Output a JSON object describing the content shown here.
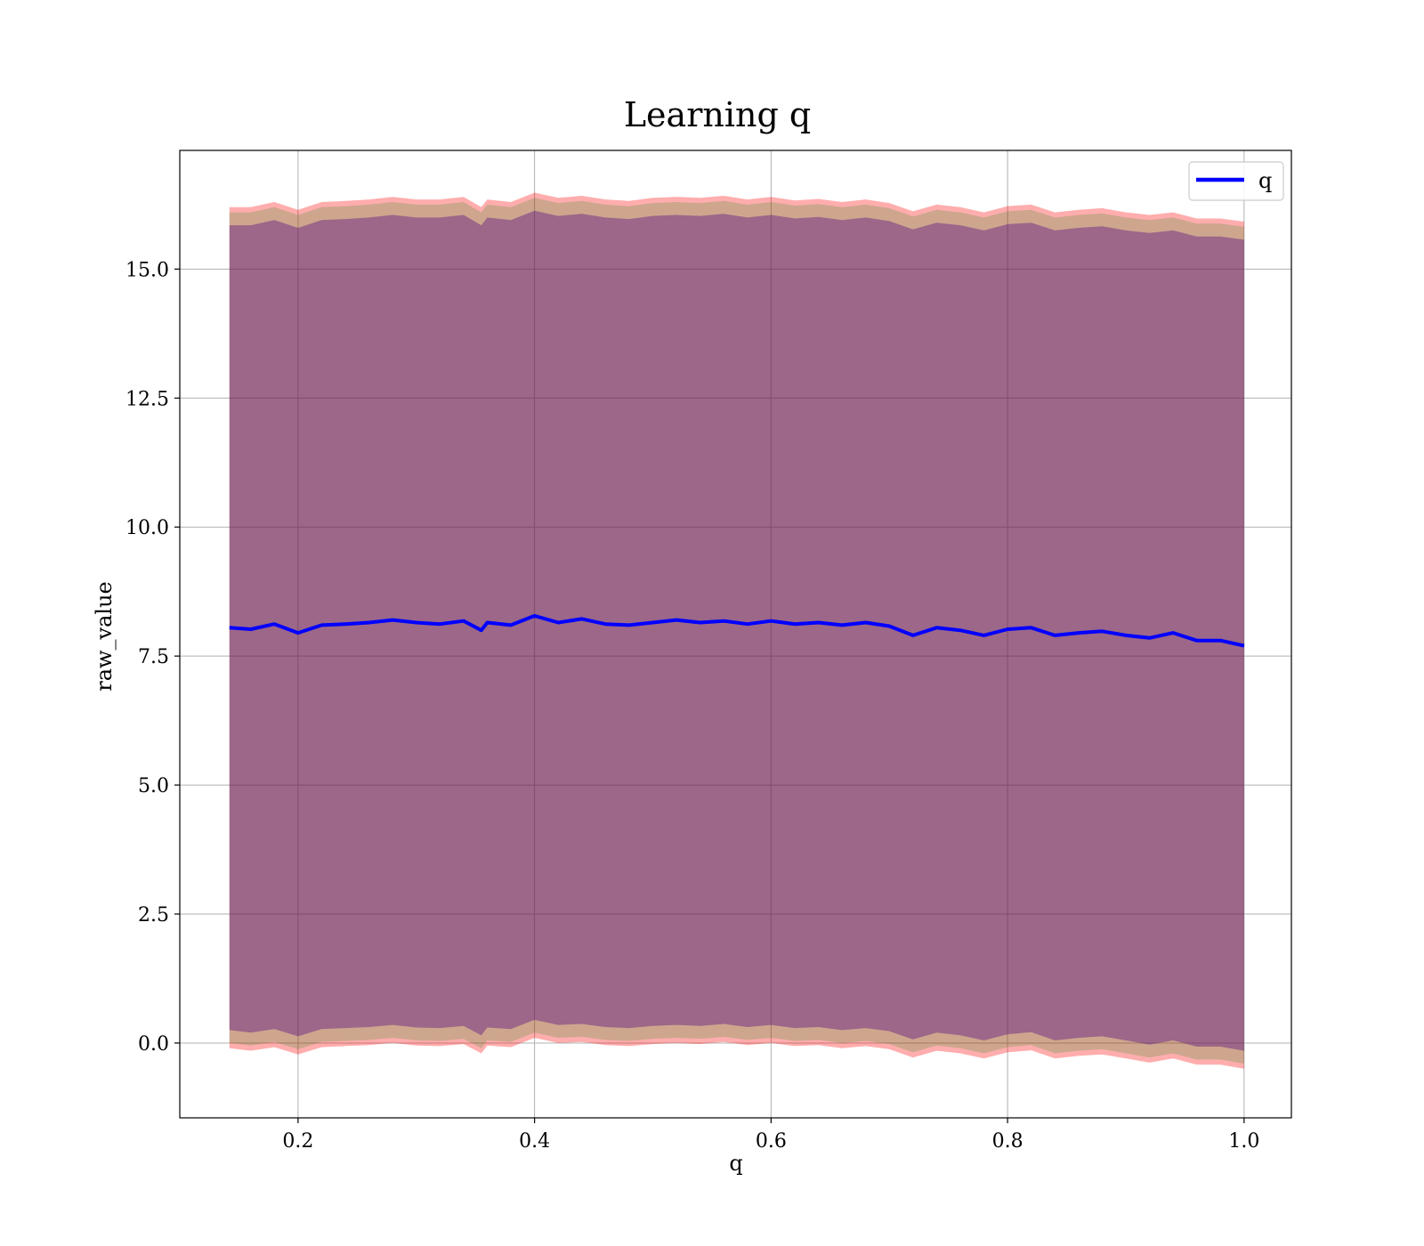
{
  "chart_data": {
    "type": "line",
    "title": "Learning q",
    "xlabel": "q",
    "ylabel": "raw_value",
    "xlim": [
      0.1,
      1.04
    ],
    "ylim": [
      -1.45,
      17.3
    ],
    "x_ticks": [
      0.2,
      0.4,
      0.6,
      0.8,
      1.0
    ],
    "x_tick_labels": [
      "0.2",
      "0.4",
      "0.6",
      "0.8",
      "1.0"
    ],
    "y_ticks": [
      0.0,
      2.5,
      5.0,
      7.5,
      10.0,
      12.5,
      15.0
    ],
    "y_tick_labels": [
      "0.0",
      "2.5",
      "5.0",
      "7.5",
      "10.0",
      "12.5",
      "15.0"
    ],
    "grid": true,
    "legend_position": "top-right",
    "series": [
      {
        "name": "q",
        "color": "#0000ff",
        "x": [
          0.142,
          0.16,
          0.18,
          0.2,
          0.22,
          0.24,
          0.26,
          0.28,
          0.3,
          0.32,
          0.34,
          0.355,
          0.36,
          0.38,
          0.4,
          0.42,
          0.44,
          0.46,
          0.48,
          0.5,
          0.52,
          0.54,
          0.56,
          0.58,
          0.6,
          0.62,
          0.64,
          0.66,
          0.68,
          0.7,
          0.72,
          0.74,
          0.76,
          0.78,
          0.8,
          0.82,
          0.84,
          0.86,
          0.88,
          0.9,
          0.92,
          0.94,
          0.96,
          0.98,
          1.0
        ],
        "y": [
          8.05,
          8.02,
          8.12,
          7.95,
          8.1,
          8.12,
          8.15,
          8.2,
          8.15,
          8.12,
          8.18,
          8.0,
          8.15,
          8.1,
          8.28,
          8.15,
          8.22,
          8.12,
          8.1,
          8.15,
          8.2,
          8.15,
          8.18,
          8.12,
          8.18,
          8.12,
          8.15,
          8.1,
          8.15,
          8.08,
          7.9,
          8.05,
          8.0,
          7.9,
          8.02,
          8.05,
          7.9,
          7.95,
          7.98,
          7.9,
          7.85,
          7.95,
          7.8,
          7.8,
          7.7
        ]
      }
    ],
    "bands": [
      {
        "color": "#ff0000",
        "opacity": 0.32,
        "x": [
          0.142,
          0.16,
          0.18,
          0.2,
          0.22,
          0.24,
          0.26,
          0.28,
          0.3,
          0.32,
          0.34,
          0.355,
          0.36,
          0.38,
          0.4,
          0.42,
          0.44,
          0.46,
          0.48,
          0.5,
          0.52,
          0.54,
          0.56,
          0.58,
          0.6,
          0.62,
          0.64,
          0.66,
          0.68,
          0.7,
          0.72,
          0.74,
          0.76,
          0.78,
          0.8,
          0.82,
          0.84,
          0.86,
          0.88,
          0.9,
          0.92,
          0.94,
          0.96,
          0.98,
          1.0
        ],
        "upper": [
          16.2,
          16.2,
          16.3,
          16.15,
          16.3,
          16.32,
          16.35,
          16.4,
          16.35,
          16.35,
          16.4,
          16.2,
          16.35,
          16.3,
          16.48,
          16.38,
          16.42,
          16.35,
          16.32,
          16.38,
          16.4,
          16.38,
          16.42,
          16.35,
          16.4,
          16.33,
          16.36,
          16.3,
          16.35,
          16.28,
          16.12,
          16.25,
          16.2,
          16.1,
          16.22,
          16.25,
          16.1,
          16.15,
          16.18,
          16.1,
          16.05,
          16.1,
          15.98,
          15.98,
          15.92
        ],
        "lower": [
          -0.1,
          -0.15,
          -0.08,
          -0.22,
          -0.08,
          -0.06,
          -0.04,
          0.0,
          -0.05,
          -0.06,
          -0.02,
          -0.2,
          -0.05,
          -0.08,
          0.1,
          0.0,
          0.02,
          -0.04,
          -0.06,
          -0.02,
          0.0,
          -0.02,
          0.02,
          -0.04,
          0.0,
          -0.06,
          -0.04,
          -0.1,
          -0.06,
          -0.12,
          -0.28,
          -0.15,
          -0.2,
          -0.3,
          -0.18,
          -0.14,
          -0.3,
          -0.25,
          -0.22,
          -0.3,
          -0.38,
          -0.3,
          -0.42,
          -0.42,
          -0.5
        ]
      },
      {
        "color": "#228b22",
        "opacity": 0.22,
        "x": [
          0.142,
          0.16,
          0.18,
          0.2,
          0.22,
          0.24,
          0.26,
          0.28,
          0.3,
          0.32,
          0.34,
          0.355,
          0.36,
          0.38,
          0.4,
          0.42,
          0.44,
          0.46,
          0.48,
          0.5,
          0.52,
          0.54,
          0.56,
          0.58,
          0.6,
          0.62,
          0.64,
          0.66,
          0.68,
          0.7,
          0.72,
          0.74,
          0.76,
          0.78,
          0.8,
          0.82,
          0.84,
          0.86,
          0.88,
          0.9,
          0.92,
          0.94,
          0.96,
          0.98,
          1.0
        ],
        "upper": [
          16.1,
          16.1,
          16.2,
          16.05,
          16.2,
          16.22,
          16.25,
          16.3,
          16.25,
          16.25,
          16.3,
          16.1,
          16.25,
          16.2,
          16.38,
          16.28,
          16.32,
          16.25,
          16.22,
          16.28,
          16.3,
          16.28,
          16.32,
          16.25,
          16.3,
          16.23,
          16.26,
          16.2,
          16.25,
          16.18,
          16.02,
          16.15,
          16.1,
          16.0,
          16.12,
          16.15,
          16.0,
          16.05,
          16.08,
          16.0,
          15.95,
          16.0,
          15.88,
          15.88,
          15.82
        ],
        "lower": [
          0.0,
          -0.05,
          0.02,
          -0.12,
          0.02,
          0.04,
          0.06,
          0.1,
          0.05,
          0.04,
          0.08,
          -0.1,
          0.05,
          0.02,
          0.2,
          0.1,
          0.12,
          0.06,
          0.04,
          0.08,
          0.1,
          0.08,
          0.12,
          0.06,
          0.1,
          0.04,
          0.06,
          0.0,
          0.04,
          -0.02,
          -0.18,
          -0.05,
          -0.1,
          -0.2,
          -0.08,
          -0.04,
          -0.2,
          -0.15,
          -0.12,
          -0.2,
          -0.28,
          -0.2,
          -0.32,
          -0.32,
          -0.4
        ]
      },
      {
        "color": "#4b0082",
        "opacity": 0.38,
        "x": [
          0.142,
          0.16,
          0.18,
          0.2,
          0.22,
          0.24,
          0.26,
          0.28,
          0.3,
          0.32,
          0.34,
          0.355,
          0.36,
          0.38,
          0.4,
          0.42,
          0.44,
          0.46,
          0.48,
          0.5,
          0.52,
          0.54,
          0.56,
          0.58,
          0.6,
          0.62,
          0.64,
          0.66,
          0.68,
          0.7,
          0.72,
          0.74,
          0.76,
          0.78,
          0.8,
          0.82,
          0.84,
          0.86,
          0.88,
          0.9,
          0.92,
          0.94,
          0.96,
          0.98,
          1.0
        ],
        "upper": [
          15.85,
          15.85,
          15.95,
          15.8,
          15.95,
          15.97,
          16.0,
          16.05,
          16.0,
          16.0,
          16.05,
          15.85,
          16.0,
          15.95,
          16.13,
          16.03,
          16.07,
          16.0,
          15.97,
          16.03,
          16.05,
          16.03,
          16.07,
          16.0,
          16.05,
          15.98,
          16.01,
          15.95,
          16.0,
          15.93,
          15.77,
          15.9,
          15.85,
          15.75,
          15.87,
          15.9,
          15.75,
          15.8,
          15.83,
          15.75,
          15.7,
          15.75,
          15.63,
          15.63,
          15.57
        ],
        "lower": [
          0.25,
          0.2,
          0.27,
          0.13,
          0.27,
          0.29,
          0.31,
          0.35,
          0.3,
          0.29,
          0.33,
          0.15,
          0.3,
          0.27,
          0.45,
          0.35,
          0.37,
          0.31,
          0.29,
          0.33,
          0.35,
          0.33,
          0.37,
          0.31,
          0.35,
          0.29,
          0.31,
          0.25,
          0.29,
          0.23,
          0.07,
          0.2,
          0.15,
          0.05,
          0.17,
          0.21,
          0.05,
          0.1,
          0.13,
          0.05,
          -0.03,
          0.05,
          -0.07,
          -0.07,
          -0.15
        ]
      }
    ]
  }
}
